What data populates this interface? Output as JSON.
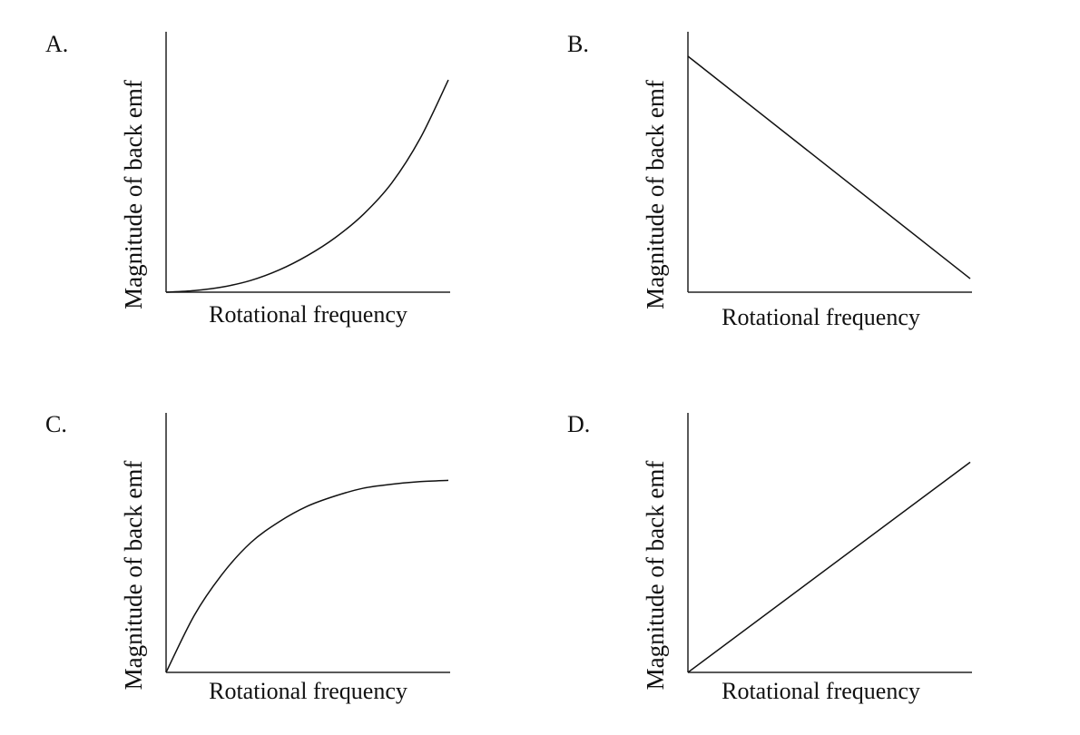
{
  "chart_data": [
    {
      "type": "line",
      "panel_label": "A.",
      "xlabel": "Rotational frequency",
      "ylabel": "Magnitude of back emf",
      "xlim": [
        0,
        1
      ],
      "ylim": [
        0,
        1
      ],
      "ticks": false,
      "grid": false,
      "shape": "increasing, concave up",
      "x": [
        0,
        0.1,
        0.2,
        0.3,
        0.4,
        0.5,
        0.6,
        0.7,
        0.8,
        0.9,
        1.0
      ],
      "y": [
        0,
        0.006,
        0.02,
        0.045,
        0.085,
        0.14,
        0.21,
        0.3,
        0.42,
        0.59,
        0.815
      ],
      "color": "#111111"
    },
    {
      "type": "line",
      "panel_label": "B.",
      "xlabel": "Rotational frequency",
      "ylabel": "Magnitude of back emf",
      "xlim": [
        0,
        1
      ],
      "ylim": [
        0,
        1
      ],
      "ticks": false,
      "grid": false,
      "shape": "decreasing linear",
      "x": [
        0,
        1.0
      ],
      "y": [
        0.906,
        0.052
      ],
      "color": "#111111"
    },
    {
      "type": "line",
      "panel_label": "C.",
      "xlabel": "Rotational frequency",
      "ylabel": "Magnitude of back emf",
      "xlim": [
        0,
        1
      ],
      "ylim": [
        0,
        1
      ],
      "ticks": false,
      "grid": false,
      "shape": "increasing, saturating",
      "x": [
        0,
        0.1,
        0.2,
        0.3,
        0.4,
        0.5,
        0.6,
        0.7,
        0.8,
        0.9,
        1.0
      ],
      "y": [
        0,
        0.22,
        0.38,
        0.5,
        0.58,
        0.64,
        0.68,
        0.71,
        0.725,
        0.735,
        0.74
      ],
      "color": "#111111"
    },
    {
      "type": "line",
      "panel_label": "D.",
      "xlabel": "Rotational frequency",
      "ylabel": "Magnitude of back emf",
      "xlim": [
        0,
        1
      ],
      "ylim": [
        0,
        1
      ],
      "ticks": false,
      "grid": false,
      "shape": "increasing linear through origin",
      "x": [
        0,
        1.0
      ],
      "y": [
        0,
        0.81
      ],
      "color": "#111111"
    }
  ]
}
